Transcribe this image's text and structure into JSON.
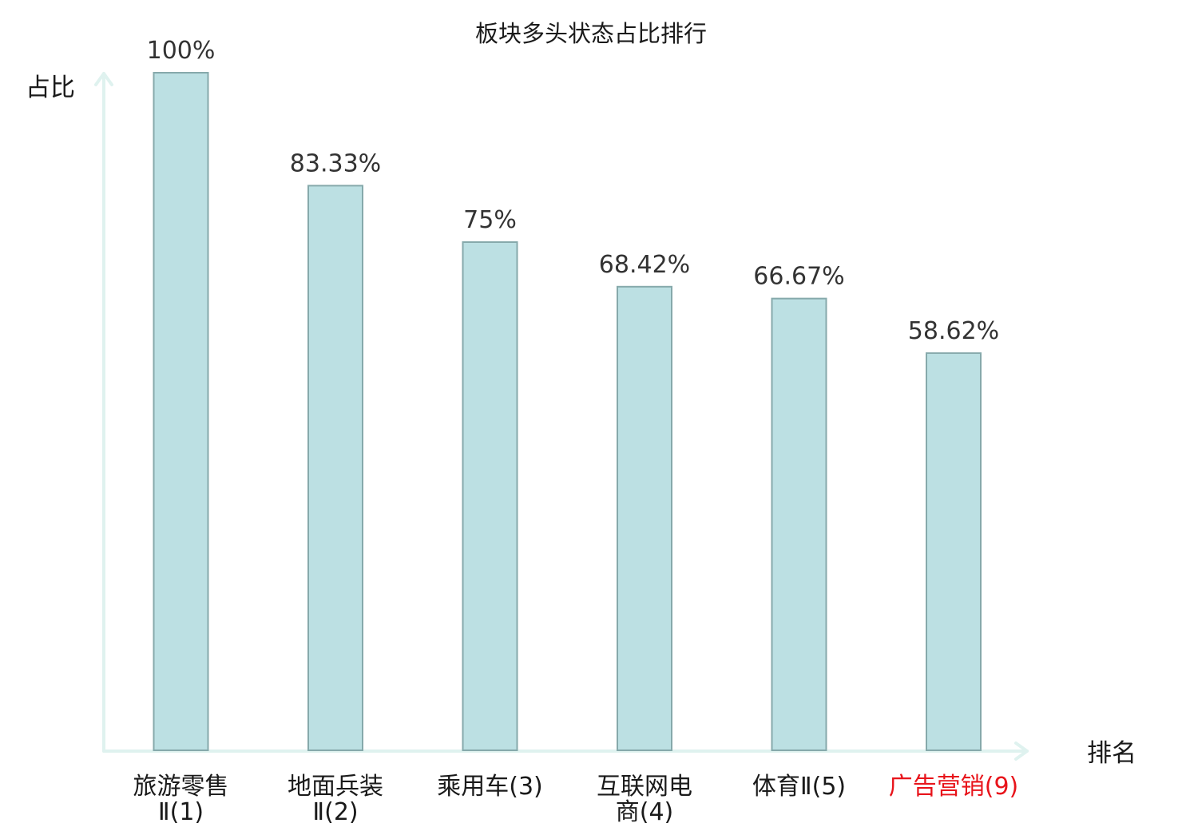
{
  "chart_data": {
    "type": "bar",
    "title": "板块多头状态占比排行",
    "xlabel": "排名",
    "ylabel": "占比",
    "categories": [
      [
        "旅游零售",
        "Ⅱ(1)"
      ],
      [
        "地面兵装",
        "Ⅱ(2)"
      ],
      [
        "乘用车(3)"
      ],
      [
        "互联网电",
        "商(4)"
      ],
      [
        "体育Ⅱ(5)"
      ],
      [
        "广告营销(9)"
      ]
    ],
    "highlight_category_index": 5,
    "values": [
      100,
      83.33,
      75,
      68.42,
      66.67,
      58.62
    ],
    "value_labels": [
      "100%",
      "83.33%",
      "75%",
      "68.42%",
      "66.67%",
      "58.62%"
    ],
    "ylim": [
      0,
      100
    ],
    "grid": false,
    "legend": "none",
    "colors": {
      "bar_fill": "#bce0e3",
      "bar_stroke": "#86a9ab",
      "axis": "#dff2ef",
      "label_text": "#1a1a1a",
      "highlight_text": "#e8141b"
    }
  }
}
